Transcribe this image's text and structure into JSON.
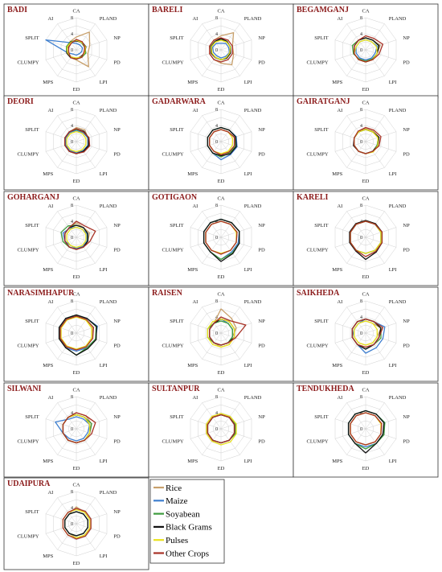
{
  "axes": [
    "CA",
    "PLAND",
    "NP",
    "PD",
    "LPI",
    "ED",
    "MPS",
    "CLUMPY",
    "SPLIT",
    "AI"
  ],
  "ticks": [
    "0",
    "4",
    "8"
  ],
  "rmax": 8,
  "legend": [
    {
      "name": "Rice",
      "color": "#c8a06c"
    },
    {
      "name": "Maize",
      "color": "#3f7fcf"
    },
    {
      "name": "Soyabean",
      "color": "#3e9b3e"
    },
    {
      "name": "Black Grams",
      "color": "#111111"
    },
    {
      "name": "Pulses",
      "color": "#e9e21c"
    },
    {
      "name": "Other Crops",
      "color": "#a83226"
    }
  ],
  "chart_data": [
    {
      "type": "radar",
      "title": "BADI",
      "series": {
        "Rice": [
          3.2,
          5.5,
          3.5,
          3,
          5.2,
          2.5,
          2.4,
          2.5,
          2.6,
          2.6
        ],
        "Maize": [
          1.6,
          1.5,
          1.6,
          1.4,
          1.2,
          1.3,
          1.3,
          2.3,
          8,
          2.2
        ],
        "Soyabean": [
          2.4,
          2.2,
          2.2,
          2.5,
          2.3,
          2.3,
          2.2,
          2.5,
          2.6,
          2.5
        ],
        "Black Grams": [
          2.2,
          2.4,
          2.5,
          2.2,
          2.0,
          2.2,
          2.4,
          2.5,
          2.3,
          2.4
        ],
        "Pulses": [
          2.4,
          2.3,
          2.4,
          2.2,
          2.2,
          2.0,
          2.2,
          2.3,
          2.4,
          2.3
        ],
        "Other Crops": [
          2.6,
          2.5,
          2.2,
          2.0,
          2.3,
          2.3,
          2.4,
          2.0,
          2.0,
          2.1
        ]
      }
    },
    {
      "type": "radar",
      "title": "BARELI",
      "series": {
        "Rice": [
          3.5,
          5.3,
          3.0,
          3.3,
          4.6,
          3.3,
          3.0,
          3.0,
          3.0,
          3.0
        ],
        "Maize": [
          1.6,
          2.0,
          2.0,
          2.2,
          2.0,
          2.0,
          1.8,
          2.0,
          2.2,
          2.0
        ],
        "Soyabean": [
          2.5,
          2.4,
          2.5,
          2.5,
          2.5,
          2.4,
          2.3,
          2.5,
          2.7,
          2.6
        ],
        "Black Grams": [
          2.8,
          2.6,
          2.4,
          2.5,
          2.5,
          2.5,
          2.4,
          2.6,
          2.6,
          2.6
        ],
        "Pulses": [
          2.4,
          2.4,
          2.4,
          2.3,
          2.3,
          2.5,
          2.3,
          2.4,
          2.5,
          2.4
        ],
        "Other Crops": [
          3.0,
          3.0,
          3.0,
          3.0,
          3.0,
          3.0,
          3.0,
          3.0,
          3.0,
          3.0
        ]
      }
    },
    {
      "type": "radar",
      "title": "BEGAMGANJ",
      "series": {
        "Rice": [
          3.0,
          3.0,
          3.8,
          3.0,
          3.0,
          3.0,
          3.0,
          3.0,
          3.0,
          3.0
        ],
        "Maize": [
          2.5,
          2.5,
          3.0,
          2.5,
          2.5,
          2.5,
          2.5,
          2.5,
          2.5,
          2.5
        ],
        "Soyabean": [
          3.0,
          3.0,
          3.4,
          3.0,
          2.8,
          2.8,
          2.8,
          3.2,
          3.5,
          3.0
        ],
        "Black Grams": [
          3.0,
          3.0,
          3.5,
          3.0,
          3.0,
          3.0,
          3.0,
          3.0,
          3.0,
          3.0
        ],
        "Pulses": [
          2.5,
          2.5,
          2.8,
          3.0,
          3.0,
          3.0,
          3.0,
          3.0,
          2.5,
          2.5
        ],
        "Other Crops": [
          3.5,
          3.5,
          4.5,
          3.5,
          3.0,
          3.0,
          3.0,
          3.0,
          3.0,
          3.0
        ]
      }
    },
    {
      "type": "radar",
      "title": "DEORI",
      "series": {
        "Rice": [
          3.5,
          3.6,
          3.0,
          3.0,
          3.0,
          3.0,
          3.0,
          3.0,
          3.0,
          3.0
        ],
        "Maize": [
          2.8,
          2.8,
          3.0,
          3.0,
          2.8,
          2.8,
          2.8,
          2.8,
          2.8,
          2.8
        ],
        "Soyabean": [
          3.0,
          3.0,
          3.2,
          3.2,
          3.0,
          3.0,
          3.0,
          3.0,
          3.0,
          3.0
        ],
        "Black Grams": [
          3.2,
          3.2,
          3.2,
          3.2,
          3.0,
          3.0,
          3.0,
          3.0,
          3.0,
          3.0
        ],
        "Pulses": [
          2.5,
          2.5,
          2.5,
          2.5,
          2.5,
          2.5,
          2.5,
          2.5,
          2.5,
          2.5
        ],
        "Other Crops": [
          3.2,
          3.0,
          3.3,
          3.5,
          3.2,
          3.0,
          3.0,
          3.0,
          3.0,
          3.0
        ]
      }
    },
    {
      "type": "radar",
      "title": "GADARWARA",
      "series": {
        "Rice": [
          3.0,
          3.0,
          3.5,
          3.5,
          3.3,
          3.0,
          3.0,
          3.0,
          3.0,
          3.0
        ],
        "Maize": [
          3.5,
          3.5,
          4.0,
          4.2,
          4.0,
          4.5,
          3.5,
          3.5,
          3.5,
          3.5
        ],
        "Soyabean": [
          3.5,
          3.5,
          3.8,
          3.8,
          3.5,
          3.8,
          3.5,
          3.5,
          3.5,
          3.5
        ],
        "Black Grams": [
          3.5,
          3.5,
          3.8,
          4.0,
          3.8,
          3.5,
          3.5,
          3.5,
          3.5,
          3.5
        ],
        "Pulses": [
          3.0,
          3.0,
          3.0,
          3.0,
          3.0,
          3.0,
          3.0,
          3.0,
          3.0,
          3.0
        ],
        "Other Crops": [
          3.0,
          3.0,
          3.5,
          3.5,
          3.3,
          3.3,
          3.0,
          3.0,
          3.0,
          3.0
        ]
      }
    },
    {
      "type": "radar",
      "title": "GAIRATGANJ",
      "series": {
        "Rice": [
          3.2,
          3.2,
          3.5,
          3.0,
          3.0,
          3.0,
          3.0,
          3.0,
          3.0,
          3.0
        ],
        "Maize": [
          3.0,
          3.0,
          3.3,
          3.0,
          3.0,
          3.0,
          3.0,
          3.0,
          3.0,
          3.0
        ],
        "Soyabean": [
          3.0,
          3.0,
          3.3,
          3.0,
          3.0,
          3.0,
          3.0,
          3.0,
          3.0,
          3.0
        ],
        "Black Grams": [
          3.0,
          3.0,
          3.5,
          3.2,
          3.0,
          3.0,
          3.0,
          3.2,
          3.0,
          3.0
        ],
        "Pulses": [
          3.0,
          3.0,
          3.2,
          3.2,
          3.2,
          3.0,
          3.0,
          3.0,
          3.0,
          3.0
        ],
        "Other Crops": [
          3.5,
          3.5,
          4.0,
          3.5,
          3.0,
          3.0,
          3.0,
          3.0,
          3.0,
          3.2
        ]
      }
    },
    {
      "type": "radar",
      "title": "GOHARGANJ",
      "series": {
        "Rice": [
          3.6,
          3.0,
          3.5,
          3.0,
          3.0,
          3.0,
          3.0,
          3.0,
          3.0,
          3.0
        ],
        "Maize": [
          2.5,
          2.5,
          2.8,
          2.8,
          2.8,
          2.8,
          2.5,
          3.0,
          3.5,
          2.8
        ],
        "Soyabean": [
          3.0,
          3.0,
          3.0,
          3.0,
          3.0,
          3.0,
          3.0,
          3.5,
          4.0,
          3.5
        ],
        "Black Grams": [
          3.0,
          3.0,
          3.0,
          3.0,
          3.0,
          3.0,
          3.0,
          3.0,
          3.0,
          3.0
        ],
        "Pulses": [
          2.5,
          2.5,
          2.5,
          2.5,
          2.5,
          2.5,
          2.5,
          2.5,
          2.5,
          2.5
        ],
        "Other Crops": [
          4.0,
          3.5,
          5.0,
          3.5,
          3.0,
          3.0,
          3.0,
          3.0,
          3.0,
          3.0
        ]
      }
    },
    {
      "type": "radar",
      "title": "GOTIGAON",
      "series": {
        "Rice": [
          4.0,
          4.0,
          4.2,
          4.0,
          4.0,
          4.0,
          4.0,
          4.0,
          4.0,
          4.0
        ],
        "Maize": [
          4.5,
          4.5,
          4.8,
          4.5,
          4.5,
          5.5,
          4.5,
          4.5,
          4.5,
          4.5
        ],
        "Soyabean": [
          4.5,
          4.5,
          4.8,
          4.8,
          4.8,
          5.5,
          4.5,
          4.5,
          4.5,
          4.5
        ],
        "Black Grams": [
          4.5,
          4.5,
          4.8,
          4.8,
          5.0,
          6.0,
          4.5,
          4.5,
          4.5,
          4.5
        ],
        "Pulses": [
          4.0,
          4.0,
          4.0,
          4.0,
          4.0,
          4.0,
          4.0,
          4.0,
          4.0,
          4.0
        ],
        "Other Crops": [
          4.0,
          4.0,
          4.2,
          4.0,
          4.0,
          4.2,
          4.0,
          4.0,
          4.0,
          4.0
        ]
      }
    },
    {
      "type": "radar",
      "title": "KARELI",
      "series": {
        "Rice": [
          4.0,
          4.0,
          4.0,
          4.0,
          4.0,
          4.0,
          4.0,
          4.0,
          4.0,
          4.0
        ],
        "Maize": [
          4.0,
          4.0,
          4.0,
          4.0,
          4.0,
          4.0,
          4.0,
          4.0,
          4.0,
          4.0
        ],
        "Soyabean": [
          4.0,
          4.0,
          4.0,
          4.0,
          4.0,
          4.0,
          4.0,
          4.0,
          4.0,
          4.0
        ],
        "Black Grams": [
          4.2,
          4.2,
          4.3,
          4.3,
          4.5,
          5.5,
          4.2,
          4.2,
          4.2,
          4.2
        ],
        "Pulses": [
          4.0,
          4.0,
          4.0,
          4.0,
          4.0,
          4.0,
          4.0,
          4.0,
          4.0,
          4.0
        ],
        "Other Crops": [
          4.0,
          4.0,
          4.3,
          4.3,
          4.3,
          4.8,
          4.0,
          4.0,
          4.0,
          4.0
        ]
      }
    },
    {
      "type": "radar",
      "title": "NARASIMHAPUR",
      "series": {
        "Rice": [
          4.0,
          4.0,
          4.3,
          4.0,
          4.0,
          4.0,
          4.0,
          4.0,
          4.0,
          4.0
        ],
        "Maize": [
          4.5,
          4.5,
          5.5,
          5.0,
          4.5,
          4.5,
          4.5,
          4.5,
          4.5,
          4.5
        ],
        "Soyabean": [
          4.5,
          4.5,
          5.2,
          5.0,
          4.5,
          5.5,
          4.5,
          4.5,
          4.5,
          4.5
        ],
        "Black Grams": [
          4.5,
          4.5,
          5.3,
          5.2,
          4.8,
          5.5,
          4.5,
          4.5,
          4.5,
          4.5
        ],
        "Pulses": [
          4.0,
          4.0,
          4.0,
          4.0,
          4.0,
          4.0,
          4.0,
          4.0,
          4.0,
          4.0
        ],
        "Other Crops": [
          4.2,
          4.2,
          4.5,
          4.3,
          4.2,
          4.2,
          4.2,
          4.2,
          4.2,
          4.2
        ]
      }
    },
    {
      "type": "radar",
      "title": "RAISEN",
      "series": {
        "Rice": [
          6.0,
          4.5,
          4.0,
          3.0,
          3.5,
          3.5,
          3.0,
          3.0,
          3.0,
          3.0
        ],
        "Maize": [
          3.5,
          3.0,
          3.0,
          3.0,
          3.0,
          3.0,
          3.0,
          3.0,
          3.0,
          3.0
        ],
        "Soyabean": [
          3.0,
          3.0,
          3.0,
          3.0,
          3.0,
          3.0,
          3.0,
          3.5,
          3.5,
          3.0
        ],
        "Black Grams": [
          3.5,
          3.5,
          3.5,
          3.5,
          3.0,
          3.0,
          3.0,
          3.0,
          3.0,
          3.0
        ],
        "Pulses": [
          3.5,
          3.5,
          3.5,
          3.5,
          3.5,
          3.5,
          3.5,
          3.5,
          3.5,
          3.5
        ],
        "Other Crops": [
          4.0,
          3.8,
          6.5,
          3.8,
          3.0,
          3.0,
          3.0,
          3.0,
          3.0,
          3.0
        ]
      }
    },
    {
      "type": "radar",
      "title": "SAIKHEDA",
      "series": {
        "Rice": [
          3.0,
          3.0,
          4.0,
          3.0,
          3.0,
          3.0,
          3.0,
          3.0,
          3.0,
          3.0
        ],
        "Maize": [
          3.5,
          3.5,
          5.0,
          4.5,
          4.5,
          5.0,
          3.5,
          3.5,
          3.0,
          3.0
        ],
        "Soyabean": [
          3.5,
          3.5,
          4.0,
          4.0,
          3.5,
          4.0,
          3.5,
          3.5,
          3.5,
          3.5
        ],
        "Black Grams": [
          3.5,
          3.5,
          4.0,
          3.5,
          3.5,
          4.0,
          3.5,
          3.5,
          3.5,
          3.5
        ],
        "Pulses": [
          3.0,
          3.0,
          3.0,
          3.0,
          3.0,
          3.0,
          3.0,
          3.0,
          3.0,
          3.0
        ],
        "Other Crops": [
          3.5,
          3.5,
          4.5,
          3.5,
          3.5,
          3.5,
          3.5,
          3.5,
          3.5,
          3.5
        ]
      }
    },
    {
      "type": "radar",
      "title": "SILWANI",
      "series": {
        "Rice": [
          4.0,
          4.0,
          4.0,
          3.5,
          3.5,
          3.5,
          3.5,
          3.5,
          3.5,
          3.5
        ],
        "Maize": [
          3.0,
          3.0,
          3.5,
          3.0,
          3.0,
          3.0,
          3.0,
          3.5,
          5.5,
          3.0
        ],
        "Soyabean": [
          3.5,
          3.5,
          4.0,
          3.5,
          3.5,
          3.5,
          3.5,
          3.5,
          3.5,
          3.5
        ],
        "Black Grams": [
          3.5,
          3.5,
          3.5,
          3.5,
          3.5,
          3.5,
          3.5,
          3.5,
          3.5,
          3.5
        ],
        "Pulses": [
          3.5,
          3.5,
          3.5,
          3.5,
          3.5,
          3.5,
          3.5,
          3.5,
          3.5,
          3.5
        ],
        "Other Crops": [
          4.0,
          4.0,
          5.0,
          4.0,
          3.5,
          3.5,
          3.5,
          3.5,
          3.5,
          3.5
        ]
      }
    },
    {
      "type": "radar",
      "title": "SULTANPUR",
      "series": {
        "Rice": [
          3.5,
          3.5,
          3.5,
          3.5,
          3.5,
          3.5,
          3.5,
          3.5,
          3.5,
          3.5
        ],
        "Maize": [
          3.5,
          3.5,
          3.5,
          3.5,
          3.5,
          3.5,
          3.5,
          3.5,
          3.5,
          3.5
        ],
        "Soyabean": [
          3.5,
          3.5,
          3.8,
          3.8,
          3.5,
          3.5,
          3.5,
          3.5,
          3.5,
          3.5
        ],
        "Black Grams": [
          3.5,
          3.5,
          3.5,
          3.5,
          3.5,
          3.5,
          3.5,
          3.5,
          3.5,
          3.5
        ],
        "Pulses": [
          3.8,
          3.8,
          4.0,
          4.0,
          4.0,
          4.0,
          3.8,
          3.8,
          3.8,
          3.8
        ],
        "Other Crops": [
          3.5,
          3.5,
          3.5,
          3.5,
          3.5,
          3.5,
          3.5,
          3.5,
          3.5,
          3.5
        ]
      }
    },
    {
      "type": "radar",
      "title": "TENDUKHEDA",
      "series": {
        "Rice": [
          4.0,
          4.0,
          4.0,
          4.0,
          4.0,
          4.0,
          4.0,
          4.0,
          4.0,
          4.0
        ],
        "Maize": [
          4.5,
          4.5,
          5.0,
          4.5,
          4.5,
          4.5,
          4.5,
          4.5,
          4.5,
          4.5
        ],
        "Soyabean": [
          4.5,
          4.5,
          5.0,
          4.8,
          4.5,
          5.0,
          4.5,
          4.5,
          4.5,
          4.5
        ],
        "Black Grams": [
          4.5,
          4.5,
          4.8,
          4.5,
          4.5,
          6.0,
          4.5,
          4.5,
          4.5,
          4.5
        ],
        "Pulses": [
          4.0,
          4.0,
          4.0,
          4.0,
          4.0,
          4.0,
          4.0,
          4.0,
          4.0,
          4.0
        ],
        "Other Crops": [
          4.0,
          4.0,
          4.2,
          4.0,
          4.0,
          4.0,
          4.0,
          4.0,
          4.0,
          4.0
        ]
      }
    },
    {
      "type": "radar",
      "title": "UDAIPURA",
      "series": {
        "Rice": [
          4.2,
          3.5,
          3.5,
          3.5,
          3.5,
          3.5,
          3.0,
          3.0,
          3.0,
          3.0
        ],
        "Maize": [
          3.0,
          3.0,
          3.0,
          3.0,
          3.0,
          3.0,
          3.0,
          3.0,
          3.0,
          3.0
        ],
        "Soyabean": [
          3.0,
          3.0,
          3.0,
          3.0,
          3.0,
          3.0,
          3.0,
          3.0,
          3.0,
          3.0
        ],
        "Black Grams": [
          3.0,
          3.0,
          3.0,
          3.0,
          3.0,
          3.0,
          3.0,
          3.0,
          3.0,
          3.0
        ],
        "Pulses": [
          3.5,
          3.5,
          3.5,
          3.5,
          3.5,
          3.5,
          3.5,
          3.5,
          3.5,
          3.5
        ],
        "Other Crops": [
          3.8,
          3.8,
          3.8,
          3.8,
          3.8,
          3.8,
          3.5,
          3.5,
          3.5,
          3.5
        ]
      }
    }
  ]
}
